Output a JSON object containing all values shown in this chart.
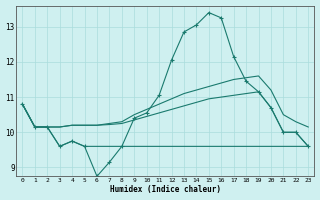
{
  "xlabel": "Humidex (Indice chaleur)",
  "bg_color": "#cff0f0",
  "grid_color": "#aadddd",
  "line_color": "#1a7a6e",
  "xlim": [
    -0.5,
    23.5
  ],
  "ylim": [
    8.75,
    13.6
  ],
  "xticks": [
    0,
    1,
    2,
    3,
    4,
    5,
    6,
    7,
    8,
    9,
    10,
    11,
    12,
    13,
    14,
    15,
    16,
    17,
    18,
    19,
    20,
    21,
    22,
    23
  ],
  "yticks": [
    9,
    10,
    11,
    12,
    13
  ],
  "line1_x": [
    0,
    1,
    2,
    3,
    4,
    5,
    6,
    7,
    8,
    9,
    10,
    11,
    12,
    13,
    14,
    15,
    16,
    17,
    18,
    19,
    20,
    21,
    22,
    23
  ],
  "line1_y": [
    10.8,
    10.15,
    10.15,
    9.6,
    9.75,
    9.6,
    8.75,
    9.15,
    9.6,
    10.4,
    10.55,
    11.05,
    12.05,
    12.85,
    13.05,
    13.4,
    13.25,
    12.15,
    11.45,
    11.15,
    10.7,
    10.0,
    10.0,
    9.6
  ],
  "line2_x": [
    0,
    1,
    2,
    3,
    4,
    5,
    6,
    7,
    8,
    9,
    10,
    11,
    12,
    13,
    14,
    15,
    16,
    17,
    18,
    19,
    20,
    21,
    22,
    23
  ],
  "line2_y": [
    10.8,
    10.15,
    10.15,
    9.6,
    9.75,
    9.6,
    9.6,
    9.6,
    9.6,
    9.6,
    9.6,
    9.6,
    9.6,
    9.6,
    9.6,
    9.6,
    9.6,
    9.6,
    9.6,
    9.6,
    9.6,
    9.6,
    9.6,
    9.6
  ],
  "line3_x": [
    0,
    1,
    2,
    3,
    4,
    5,
    6,
    7,
    8,
    9,
    10,
    11,
    12,
    13,
    14,
    15,
    16,
    17,
    18,
    19,
    20,
    21,
    22,
    23
  ],
  "line3_y": [
    10.8,
    10.15,
    10.15,
    10.15,
    10.2,
    10.2,
    10.2,
    10.22,
    10.25,
    10.35,
    10.45,
    10.55,
    10.65,
    10.75,
    10.85,
    10.95,
    11.0,
    11.05,
    11.1,
    11.15,
    10.7,
    10.0,
    10.0,
    9.6
  ],
  "line4_x": [
    0,
    1,
    2,
    3,
    4,
    5,
    6,
    7,
    8,
    9,
    10,
    11,
    12,
    13,
    14,
    15,
    16,
    17,
    18,
    19,
    20,
    21,
    22,
    23
  ],
  "line4_y": [
    10.8,
    10.15,
    10.15,
    10.15,
    10.2,
    10.2,
    10.2,
    10.25,
    10.3,
    10.5,
    10.65,
    10.8,
    10.95,
    11.1,
    11.2,
    11.3,
    11.4,
    11.5,
    11.55,
    11.6,
    11.2,
    10.5,
    10.3,
    10.15
  ]
}
